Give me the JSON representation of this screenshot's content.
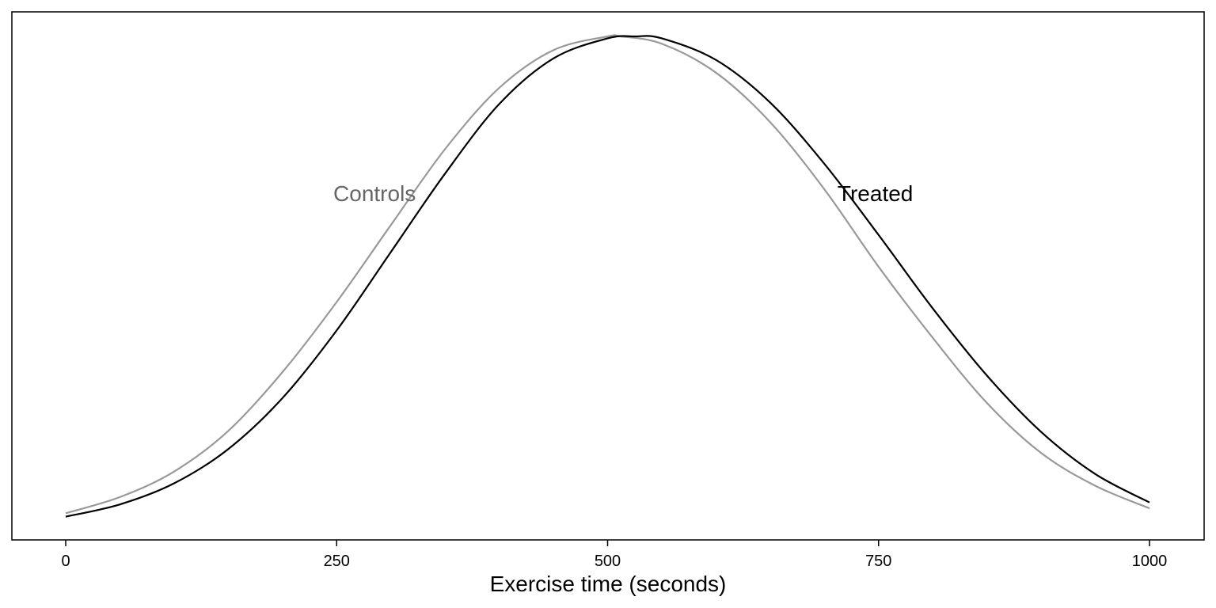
{
  "chart_data": {
    "type": "line",
    "title": "",
    "xlabel": "Exercise time (seconds)",
    "ylabel": "",
    "xlim": [
      -50,
      1050
    ],
    "ylim": [
      0,
      1.0
    ],
    "x_ticks": [
      0,
      250,
      500,
      750,
      1000
    ],
    "x_tick_labels": [
      "0",
      "250",
      "500",
      "750",
      "1000"
    ],
    "y_axis_shown": false,
    "grid": false,
    "legend": "none (direct labels)",
    "series": [
      {
        "name": "Controls",
        "color": "#999999",
        "label_color": "#666666",
        "label_anchor": {
          "x": 285,
          "y": 0.68
        },
        "x": [
          0,
          50,
          100,
          150,
          200,
          250,
          300,
          350,
          400,
          450,
          500,
          512,
          550,
          600,
          650,
          700,
          750,
          800,
          850,
          900,
          950,
          1000
        ],
        "y": [
          0.027,
          0.06,
          0.112,
          0.195,
          0.315,
          0.458,
          0.615,
          0.77,
          0.895,
          0.972,
          1.0,
          1.0,
          0.985,
          0.926,
          0.825,
          0.688,
          0.53,
          0.385,
          0.252,
          0.15,
          0.083,
          0.037
        ]
      },
      {
        "name": "Treated",
        "color": "#000000",
        "label_color": "#000000",
        "label_anchor": {
          "x": 747,
          "y": 0.68
        },
        "x": [
          0,
          50,
          100,
          150,
          200,
          250,
          300,
          350,
          400,
          450,
          500,
          525,
          550,
          600,
          650,
          700,
          750,
          800,
          850,
          900,
          950,
          1000
        ],
        "y": [
          0.02,
          0.045,
          0.088,
          0.158,
          0.262,
          0.4,
          0.56,
          0.72,
          0.862,
          0.955,
          0.996,
          1.0,
          0.996,
          0.952,
          0.865,
          0.74,
          0.595,
          0.445,
          0.308,
          0.193,
          0.107,
          0.049
        ]
      }
    ]
  }
}
